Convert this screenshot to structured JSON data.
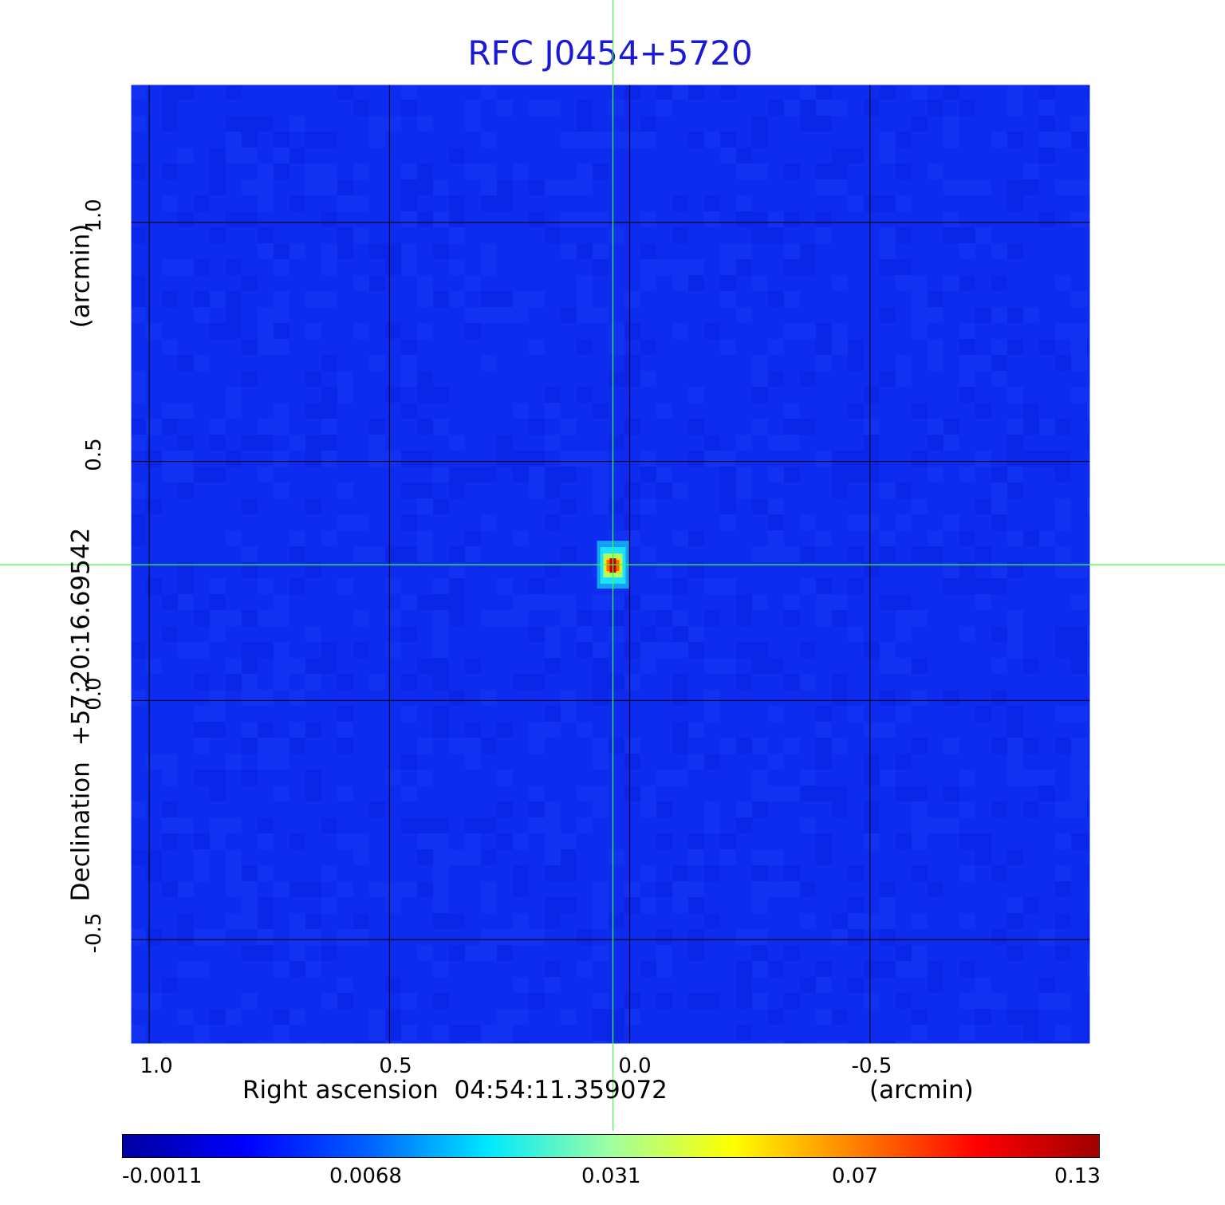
{
  "chart_data": {
    "type": "heatmap",
    "title": "RFC J0454+5720",
    "xlabel": "Right ascension  04:54:11.359072",
    "x_unit": "(arcmin)",
    "ylabel": "Declination  +57:20:16.69542",
    "y_unit": "(arcmin)",
    "x_range": [
      1.04,
      -0.96
    ],
    "y_range": [
      -0.72,
      1.29
    ],
    "x_ticks": [
      "1.0",
      "0.5",
      "0.0",
      "-0.5"
    ],
    "y_ticks": [
      "1.0",
      "0.5",
      "0.0",
      "-0.5"
    ],
    "grid": true,
    "crosshair": {
      "x": 0.035,
      "y": 0.284
    },
    "peak": {
      "x": 0.035,
      "y": 0.284,
      "value": 0.13
    },
    "colorbar": {
      "ticks": [
        "-0.0011",
        "0.0068",
        "0.031",
        "0.07",
        "0.13"
      ],
      "colors": [
        "#0000a0",
        "#0000ff",
        "#0060ff",
        "#00e8ff",
        "#a0ffa0",
        "#ffff00",
        "#ff8000",
        "#ff0000",
        "#a00000"
      ]
    },
    "colors": {
      "background": "#0d2cf0",
      "title": "#1a1ad6",
      "crosshair": "#3cff3c",
      "grid": "#000000"
    }
  }
}
